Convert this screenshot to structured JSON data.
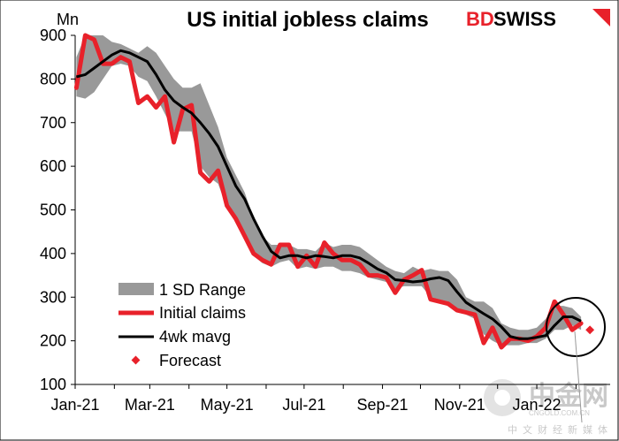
{
  "header": {
    "unit_label": "Mn",
    "title": "US initial jobless claims",
    "logo_part1": "BD",
    "logo_part2": "SWISS"
  },
  "watermark": {
    "name": "中金网",
    "site": "CNGOLD.COM.CN",
    "tagline": "中文财经新媒体"
  },
  "colors": {
    "initial_claims": "#e8212a",
    "mavg": "#000000",
    "range": "#999999",
    "forecast": "#e8212a"
  },
  "chart_data": {
    "type": "line",
    "title": "US initial jobless claims",
    "ylabel": "Mn",
    "ylim": [
      100,
      900
    ],
    "yticks": [
      100,
      200,
      300,
      400,
      500,
      600,
      700,
      800,
      900
    ],
    "x_ticks": [
      "Jan-21",
      "Mar-21",
      "May-21",
      "Jul-21",
      "Sep-21",
      "Nov-21",
      "Jan-22"
    ],
    "x_dates": [
      "2021-01-02",
      "2021-01-09",
      "2021-01-16",
      "2021-01-23",
      "2021-01-30",
      "2021-02-06",
      "2021-02-13",
      "2021-02-20",
      "2021-02-27",
      "2021-03-06",
      "2021-03-13",
      "2021-03-20",
      "2021-03-27",
      "2021-04-03",
      "2021-04-10",
      "2021-04-17",
      "2021-04-24",
      "2021-05-01",
      "2021-05-08",
      "2021-05-15",
      "2021-05-22",
      "2021-05-29",
      "2021-06-05",
      "2021-06-12",
      "2021-06-19",
      "2021-06-26",
      "2021-07-03",
      "2021-07-10",
      "2021-07-17",
      "2021-07-24",
      "2021-07-31",
      "2021-08-07",
      "2021-08-14",
      "2021-08-21",
      "2021-08-28",
      "2021-09-04",
      "2021-09-11",
      "2021-09-18",
      "2021-09-25",
      "2021-10-02",
      "2021-10-09",
      "2021-10-16",
      "2021-10-23",
      "2021-10-30",
      "2021-11-06",
      "2021-11-13",
      "2021-11-20",
      "2021-11-27",
      "2021-12-04",
      "2021-12-11",
      "2021-12-18",
      "2021-12-25",
      "2022-01-01",
      "2022-01-08",
      "2022-01-15",
      "2022-01-22",
      "2022-01-29",
      "2022-02-05"
    ],
    "x_range": [
      "2021-01-01",
      "2022-02-28"
    ],
    "series": [
      {
        "name": "Initial claims",
        "style": "line",
        "values": [
          780,
          900,
          890,
          835,
          835,
          850,
          840,
          745,
          760,
          735,
          760,
          655,
          730,
          740,
          585,
          565,
          590,
          510,
          480,
          440,
          400,
          385,
          375,
          420,
          420,
          370,
          395,
          370,
          425,
          400,
          385,
          385,
          375,
          350,
          350,
          345,
          310,
          340,
          350,
          362,
          295,
          290,
          285,
          270,
          265,
          260,
          195,
          230,
          185,
          205,
          205,
          200,
          210,
          230,
          290,
          260,
          225,
          240
        ]
      },
      {
        "name": "4wk mavg",
        "style": "line",
        "values": [
          805,
          810,
          825,
          840,
          855,
          865,
          860,
          850,
          840,
          810,
          775,
          750,
          735,
          722,
          700,
          675,
          645,
          600,
          555,
          525,
          480,
          440,
          405,
          390,
          395,
          395,
          390,
          395,
          393,
          390,
          395,
          395,
          390,
          378,
          365,
          356,
          340,
          338,
          335,
          337,
          342,
          345,
          338,
          312,
          288,
          275,
          262,
          250,
          232,
          210,
          205,
          205,
          208,
          212,
          235,
          255,
          255,
          245
        ]
      },
      {
        "name": "1 SD Range",
        "style": "band",
        "low": [
          760,
          755,
          770,
          800,
          830,
          835,
          830,
          805,
          795,
          760,
          720,
          680,
          680,
          680,
          600,
          575,
          560,
          505,
          470,
          435,
          395,
          378,
          370,
          380,
          385,
          365,
          370,
          365,
          370,
          370,
          360,
          360,
          355,
          345,
          340,
          335,
          320,
          325,
          325,
          325,
          300,
          295,
          290,
          275,
          260,
          250,
          215,
          200,
          190,
          190,
          190,
          195,
          195,
          205,
          225,
          225,
          235,
          225
        ],
        "high": [
          850,
          900,
          900,
          900,
          885,
          880,
          870,
          860,
          875,
          860,
          830,
          800,
          780,
          780,
          790,
          740,
          690,
          620,
          580,
          540,
          480,
          440,
          420,
          420,
          420,
          410,
          410,
          405,
          425,
          415,
          420,
          420,
          415,
          400,
          385,
          370,
          360,
          355,
          370,
          360,
          365,
          360,
          360,
          340,
          300,
          290,
          290,
          275,
          240,
          230,
          225,
          225,
          230,
          250,
          280,
          280,
          275,
          255
        ]
      },
      {
        "name": "Forecast",
        "style": "marker",
        "x": [
          "2022-02-12"
        ],
        "values": [
          225
        ]
      }
    ],
    "legend": {
      "position": "bottom-left",
      "entries": [
        "1 SD Range",
        "Initial claims",
        "4wk mavg",
        "Forecast"
      ]
    },
    "annotations": [
      "circle-highlight-on-latest-values"
    ]
  }
}
